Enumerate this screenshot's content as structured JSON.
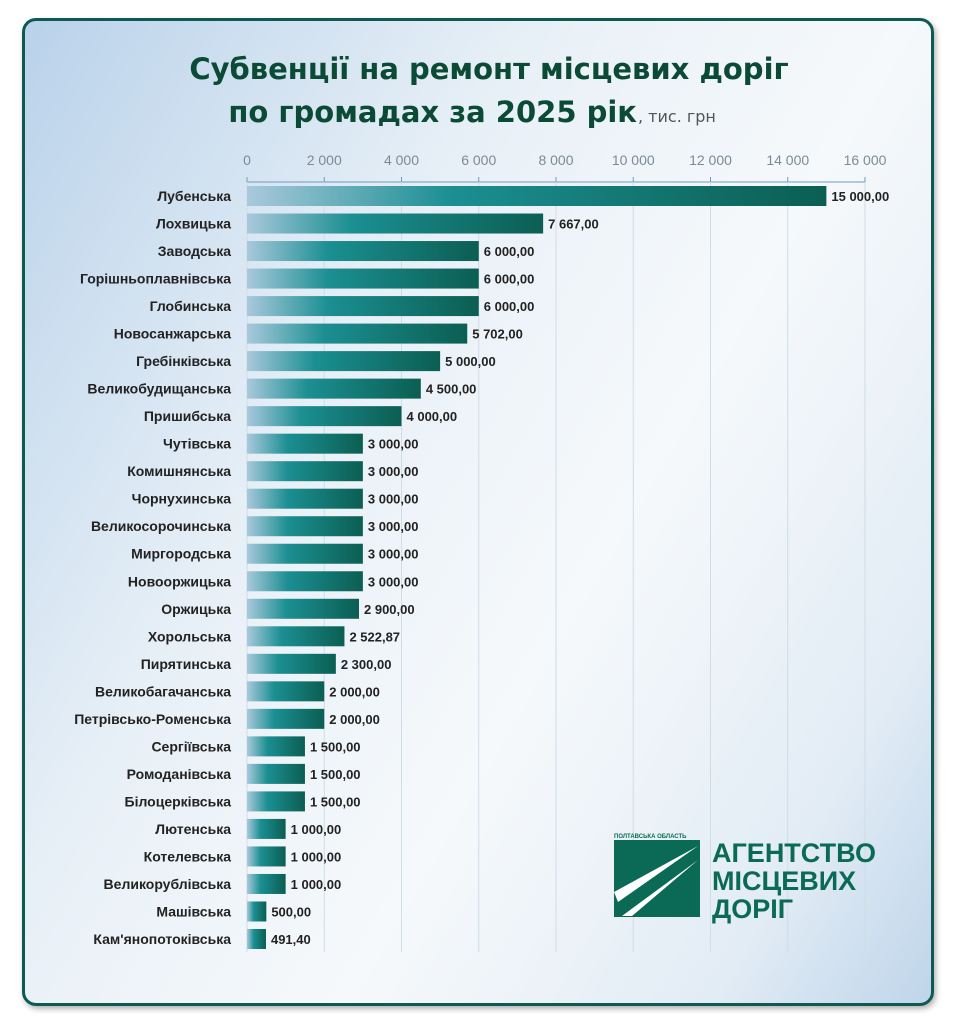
{
  "chart_data": {
    "type": "bar",
    "orientation": "horizontal",
    "title_line1": "Субвенції на ремонт місцевих доріг",
    "title_line2": "по громадах за 2025 рік",
    "unit": ", тис. грн",
    "xlim": [
      0,
      16000
    ],
    "ticks": [
      "0",
      "2 000",
      "4 000",
      "6 000",
      "8 000",
      "10 000",
      "12 000",
      "14 000",
      "16 000"
    ],
    "grid": true,
    "bar_color": "#0e6b5e",
    "categories": [
      "Лубенська",
      "Лохвицька",
      "Заводська",
      "Горішньоплавнівська",
      "Глобинська",
      "Новосанжарська",
      "Гребінківська",
      "Великобудищанська",
      "Пришибська",
      "Чутівська",
      "Комишнянська",
      "Чорнухинська",
      "Великосорочинська",
      "Миргородська",
      "Новооржицька",
      "Оржицька",
      "Хорольська",
      "Пирятинська",
      "Великобагачанська",
      "Петрівсько-Роменська",
      "Сергіївська",
      "Ромоданівська",
      "Білоцерківська",
      "Лютенська",
      "Котелевська",
      "Великорублівська",
      "Машівська",
      "Кам'янопотоківська"
    ],
    "values": [
      15000,
      7667,
      6000,
      6000,
      6000,
      5702,
      5000,
      4500,
      4000,
      3000,
      3000,
      3000,
      3000,
      3000,
      3000,
      2900,
      2522.87,
      2300,
      2000,
      2000,
      1500,
      1500,
      1500,
      1000,
      1000,
      1000,
      500,
      491.4
    ],
    "data_labels": [
      "15 000,00",
      "7 667,00",
      "6 000,00",
      "6 000,00",
      "6 000,00",
      "5 702,00",
      "5 000,00",
      "4 500,00",
      "4 000,00",
      "3 000,00",
      "3 000,00",
      "3 000,00",
      "3 000,00",
      "3 000,00",
      "3 000,00",
      "2 900,00",
      "2 522,87",
      "2 300,00",
      "2 000,00",
      "2 000,00",
      "1 500,00",
      "1 500,00",
      "1 500,00",
      "1 000,00",
      "1 000,00",
      "1 000,00",
      "500,00",
      "491,40"
    ]
  },
  "logo": {
    "region": "ПОЛТАВСЬКА ОБЛАСТЬ",
    "line1": "АГЕНТСТВО",
    "line2": "МІСЦЕВИХ",
    "line3": "ДОРІГ",
    "color": "#0b6a55"
  }
}
